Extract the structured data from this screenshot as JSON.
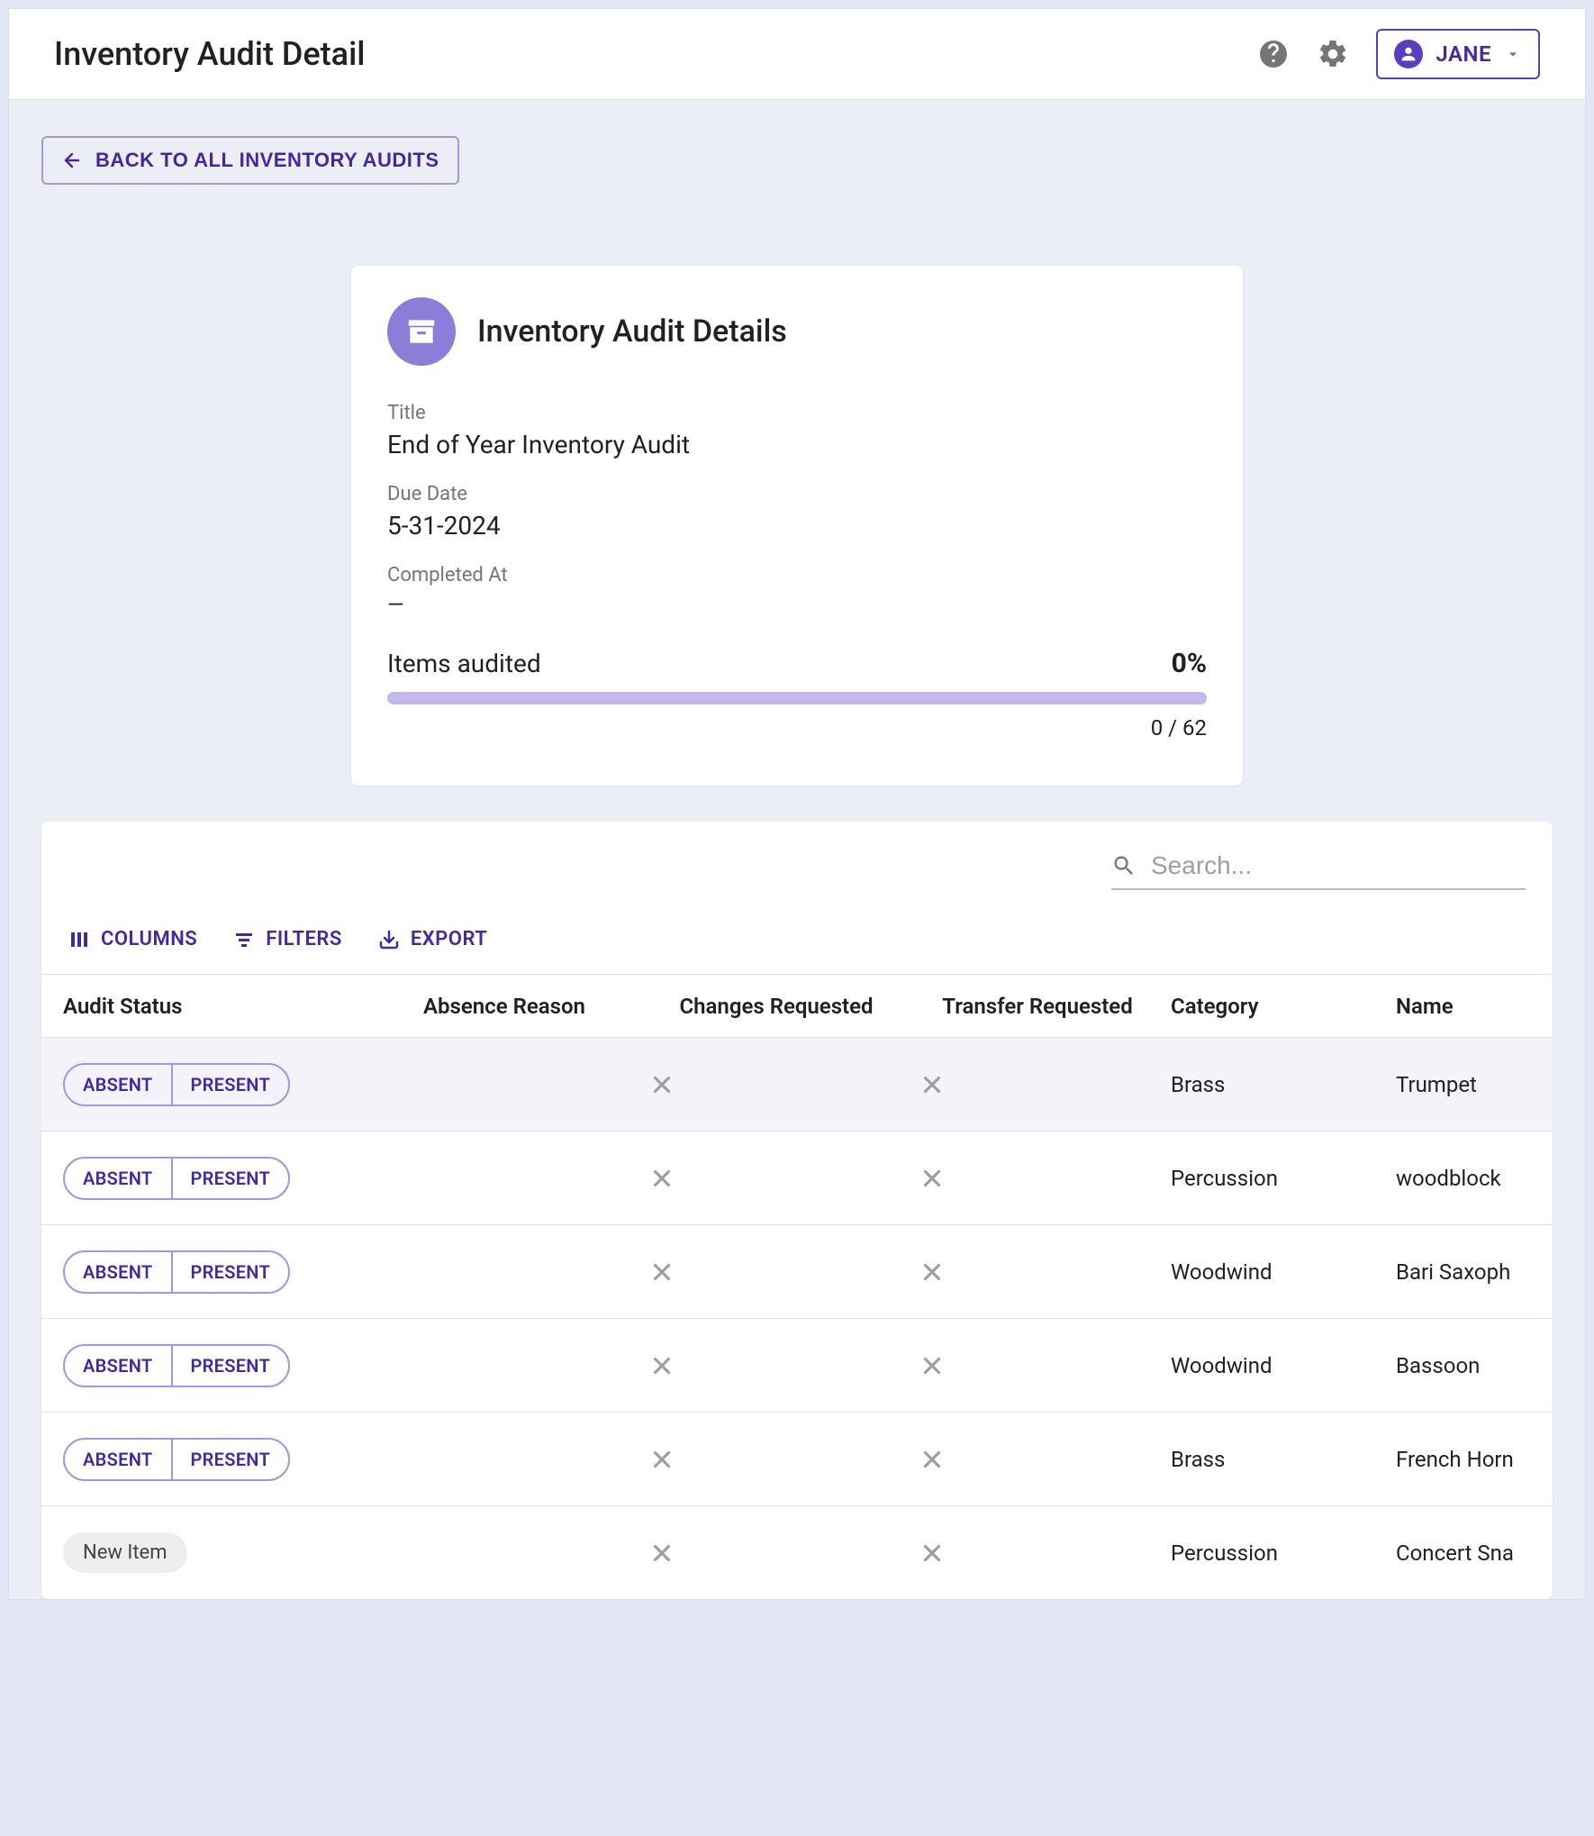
{
  "topbar": {
    "title": "Inventory Audit Detail",
    "user_name": "JANE"
  },
  "back_button": {
    "label": "BACK TO ALL INVENTORY AUDITS"
  },
  "details_card": {
    "heading": "Inventory Audit Details",
    "title_label": "Title",
    "title_value": "End of Year Inventory Audit",
    "due_label": "Due Date",
    "due_value": "5-31-2024",
    "completed_label": "Completed At",
    "completed_value": "—",
    "progress_label": "Items audited",
    "progress_pct": "0%",
    "progress_count": "0 / 62",
    "progress_fill_pct": 0,
    "progress_bar_color": "#c5b8ea"
  },
  "table": {
    "search_placeholder": "Search...",
    "toolbar": {
      "columns": "COLUMNS",
      "filters": "FILTERS",
      "export": "EXPORT"
    },
    "columns": {
      "status": "Audit Status",
      "absence": "Absence Reason",
      "changes": "Changes Requested",
      "transfer": "Transfer Requested",
      "category": "Category",
      "name": "Name"
    },
    "status_labels": {
      "absent": "ABSENT",
      "present": "PRESENT"
    },
    "new_item_label": "New Item",
    "rows": [
      {
        "kind": "toggle",
        "alt": true,
        "category": "Brass",
        "name": "Trumpet"
      },
      {
        "kind": "toggle",
        "alt": false,
        "category": "Percussion",
        "name": "woodblock"
      },
      {
        "kind": "toggle",
        "alt": false,
        "category": "Woodwind",
        "name": "Bari Saxoph"
      },
      {
        "kind": "toggle",
        "alt": false,
        "category": "Woodwind",
        "name": "Bassoon"
      },
      {
        "kind": "toggle",
        "alt": false,
        "category": "Brass",
        "name": "French Horn"
      },
      {
        "kind": "chip",
        "alt": false,
        "category": "Percussion",
        "name": "Concert Sna"
      }
    ]
  },
  "colors": {
    "purple": "#5b3dc4",
    "purple_light": "#c5b8ea",
    "icon_gray": "#757575"
  }
}
